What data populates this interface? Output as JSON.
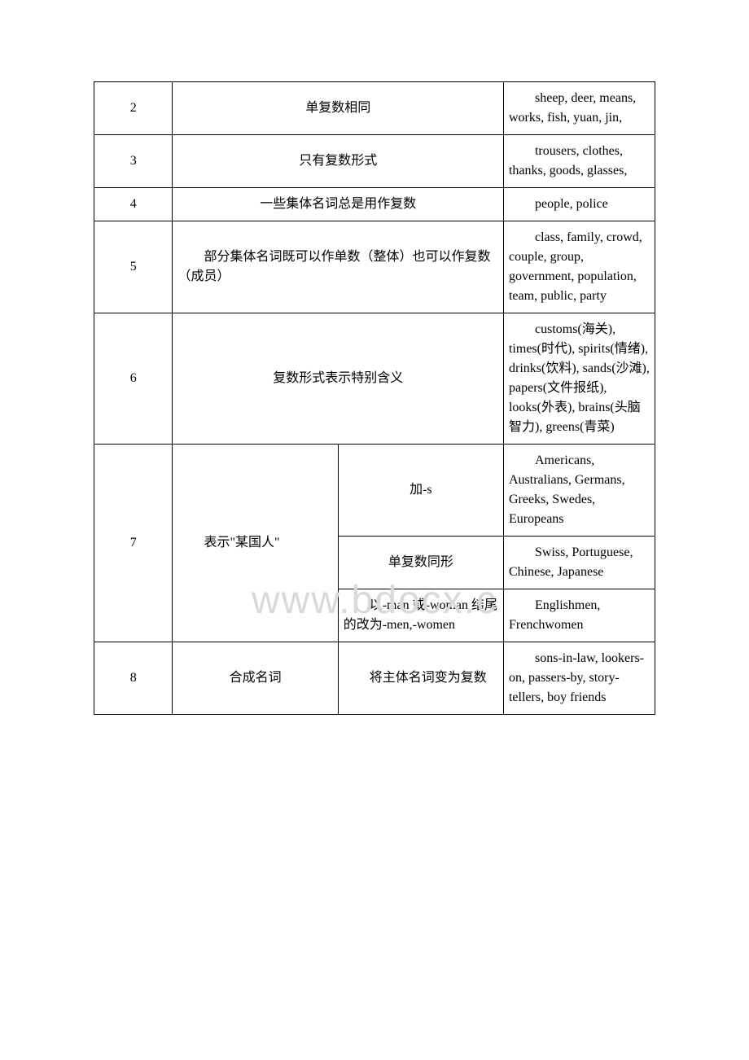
{
  "watermark": "www.bdocx.c",
  "rows": {
    "r2": {
      "num": "2",
      "desc": "单复数相同",
      "examples": "sheep, deer, means, works, fish, yuan, jin,"
    },
    "r3": {
      "num": "3",
      "desc": "只有复数形式",
      "examples": "trousers, clothes, thanks, goods, glasses,"
    },
    "r4": {
      "num": "4",
      "desc": "一些集体名词总是用作复数",
      "examples": "people, police"
    },
    "r5": {
      "num": "5",
      "desc": "部分集体名词既可以作单数（整体）也可以作复数（成员）",
      "examples": "class, family, crowd, couple, group, government, population, team, public, party"
    },
    "r6": {
      "num": "6",
      "desc": "复数形式表示特别含义",
      "examples": "customs(海关), times(时代), spirits(情绪), drinks(饮料), sands(沙滩), papers(文件报纸), looks(外表), brains(头脑智力), greens(青菜)"
    },
    "r7": {
      "num": "7",
      "desc": "表示\"某国人\"",
      "sub1": "加-s",
      "ex1": "Americans, Australians, Germans, Greeks, Swedes, Europeans",
      "sub2": "单复数同形",
      "ex2": "Swiss, Portuguese, Chinese, Japanese",
      "sub3": "以-man 或-woman 结尾的改为-men,-women",
      "ex3": "Englishmen, Frenchwomen"
    },
    "r8": {
      "num": "8",
      "desc": "合成名词",
      "sub1": "将主体名词变为复数",
      "ex1": "sons-in-law, lookers-on, passers-by, story-tellers, boy friends"
    }
  }
}
